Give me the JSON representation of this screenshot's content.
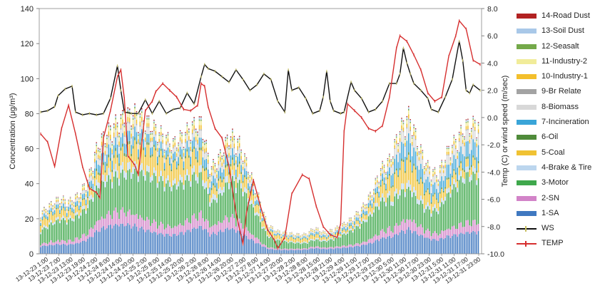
{
  "chart_data": {
    "type": "stacked-bar-with-lines",
    "left_axis": {
      "label": "Concentration (μg/m³)",
      "range": [
        0,
        140
      ],
      "ticks": [
        "0",
        "20",
        "40",
        "60",
        "80",
        "100",
        "120",
        "140"
      ]
    },
    "right_axis": {
      "label": "Temp (C) or wind speed (m/sec)",
      "range": [
        -10,
        8
      ],
      "ticks": [
        "-10.0",
        "-8.0",
        "-6.0",
        "-4.0",
        "-2.0",
        "0.0",
        "2.0",
        "4.0",
        "6.0",
        "8.0"
      ]
    },
    "x_ticks": [
      "13-12-23 1:00",
      "13-12-23 7:00",
      "13-12-23 13:00",
      "13-12-23 19:00",
      "13-12-24 2:00",
      "13-12-24 8:00",
      "13-12-24 14:00",
      "13-12-24 20:00",
      "13-12-25 2:00",
      "13-12-25 8:00",
      "13-12-25 14:00",
      "13-12-25 20:00",
      "13-12-26 2:00",
      "13-12-26 8:00",
      "13-12-26 14:00",
      "13-12-26 20:00",
      "13-12-27 2:00",
      "13-12-27 8:00",
      "13-12-27 14:00",
      "13-12-27 20:00",
      "13-12-28 2:00",
      "13-12-28 8:00",
      "13-12-28 15:00",
      "13-12-28 21:00",
      "13-12-29 4:00",
      "13-12-29 11:00",
      "13-12-29 17:00",
      "13-12-29 23:00",
      "13-12-30 5:00",
      "13-12-30 11:00",
      "13-12-30 17:00",
      "13-12-30 23:00",
      "13-12-31 5:00",
      "13-12-31 11:00",
      "13-12-31 17:00",
      "13-12-31 23:00"
    ],
    "total_profile": [
      [
        0,
        25
      ],
      [
        4,
        30
      ],
      [
        8,
        34
      ],
      [
        12,
        32
      ],
      [
        16,
        36
      ],
      [
        20,
        45
      ],
      [
        24,
        66
      ],
      [
        28,
        74
      ],
      [
        32,
        80
      ],
      [
        36,
        84
      ],
      [
        40,
        86
      ],
      [
        44,
        82
      ],
      [
        48,
        77
      ],
      [
        52,
        72
      ],
      [
        56,
        67
      ],
      [
        60,
        72
      ],
      [
        64,
        78
      ],
      [
        68,
        80
      ],
      [
        72,
        52
      ],
      [
        76,
        60
      ],
      [
        80,
        73
      ],
      [
        84,
        68
      ],
      [
        88,
        52
      ],
      [
        92,
        36
      ],
      [
        96,
        18
      ],
      [
        100,
        14
      ],
      [
        104,
        13
      ],
      [
        108,
        12
      ],
      [
        112,
        12
      ],
      [
        116,
        16
      ],
      [
        120,
        13
      ],
      [
        124,
        15
      ],
      [
        128,
        18
      ],
      [
        132,
        22
      ],
      [
        136,
        28
      ],
      [
        140,
        37
      ],
      [
        144,
        52
      ],
      [
        148,
        58
      ],
      [
        152,
        76
      ],
      [
        156,
        85
      ],
      [
        160,
        66
      ],
      [
        164,
        53
      ],
      [
        168,
        48
      ],
      [
        172,
        62
      ],
      [
        176,
        70
      ],
      [
        180,
        78
      ],
      [
        186,
        80
      ]
    ],
    "series": [
      {
        "name": "14-Road Dust",
        "color": "#b22222"
      },
      {
        "name": "13-Soil Dust",
        "color": "#a9c8e8"
      },
      {
        "name": "12-Seasalt",
        "color": "#74a94a"
      },
      {
        "name": "11-Industry-2",
        "color": "#f1ec9a"
      },
      {
        "name": "10-Industry-1",
        "color": "#f3bf2c"
      },
      {
        "name": "9-Br Relate",
        "color": "#a3a3a3"
      },
      {
        "name": "8-Biomass",
        "color": "#d8d8d8"
      },
      {
        "name": "7-Incineration",
        "color": "#3aa5d8"
      },
      {
        "name": "6-Oil",
        "color": "#4f8b3a"
      },
      {
        "name": "5-Coal",
        "color": "#f0c233"
      },
      {
        "name": "4-Brake & Tire",
        "color": "#bcd6ee"
      },
      {
        "name": "3-Motor",
        "color": "#3fa84c"
      },
      {
        "name": "2-SN",
        "color": "#d283c8"
      },
      {
        "name": "1-SA",
        "color": "#3f78c0"
      }
    ],
    "lines": [
      {
        "name": "WS",
        "color": "#111111",
        "marker_color": "#c8c060",
        "values": [
          [
            0,
            0.4
          ],
          [
            4,
            0.5
          ],
          [
            8,
            0.8
          ],
          [
            10,
            1.6
          ],
          [
            14,
            2.1
          ],
          [
            18,
            2.3
          ],
          [
            20,
            0.4
          ],
          [
            24,
            0.2
          ],
          [
            28,
            0.3
          ],
          [
            32,
            0.2
          ],
          [
            36,
            0.3
          ],
          [
            40,
            1.4
          ],
          [
            44,
            3.8
          ],
          [
            46,
            2.0
          ],
          [
            48,
            0.4
          ],
          [
            52,
            0.3
          ],
          [
            56,
            0.3
          ],
          [
            60,
            1.3
          ],
          [
            64,
            0.3
          ],
          [
            68,
            1.2
          ],
          [
            72,
            0.3
          ],
          [
            76,
            0.6
          ],
          [
            80,
            0.7
          ],
          [
            84,
            1.8
          ],
          [
            88,
            1.0
          ],
          [
            92,
            3.0
          ],
          [
            94,
            3.9
          ],
          [
            96,
            3.6
          ],
          [
            100,
            3.4
          ],
          [
            104,
            3.0
          ],
          [
            108,
            2.6
          ],
          [
            112,
            3.5
          ],
          [
            116,
            2.8
          ],
          [
            120,
            2.0
          ],
          [
            124,
            2.4
          ],
          [
            128,
            3.2
          ],
          [
            132,
            2.8
          ],
          [
            136,
            1.2
          ],
          [
            140,
            0.4
          ],
          [
            142,
            3.5
          ],
          [
            144,
            2.0
          ],
          [
            148,
            2.2
          ],
          [
            152,
            1.4
          ],
          [
            156,
            0.3
          ],
          [
            160,
            0.5
          ],
          [
            162,
            1.5
          ],
          [
            164,
            3.4
          ],
          [
            166,
            1.2
          ],
          [
            168,
            0.5
          ],
          [
            172,
            0.3
          ],
          [
            174,
            0.4
          ],
          [
            178,
            2.6
          ],
          [
            180,
            2.0
          ],
          [
            184,
            1.4
          ],
          [
            188,
            0.4
          ],
          [
            192,
            0.6
          ],
          [
            196,
            1.2
          ],
          [
            200,
            2.5
          ],
          [
            204,
            2.5
          ],
          [
            206,
            3.2
          ],
          [
            208,
            5.1
          ],
          [
            210,
            4.0
          ],
          [
            212,
            3.2
          ],
          [
            214,
            2.5
          ],
          [
            218,
            2.0
          ],
          [
            222,
            1.4
          ],
          [
            224,
            0.6
          ],
          [
            228,
            0.4
          ],
          [
            232,
            1.5
          ],
          [
            236,
            2.8
          ],
          [
            240,
            5.6
          ],
          [
            242,
            4.2
          ],
          [
            244,
            2.0
          ],
          [
            246,
            1.8
          ],
          [
            248,
            2.4
          ],
          [
            252,
            2.0
          ]
        ]
      },
      {
        "name": "TEMP",
        "color": "#d62f2f",
        "marker_color": "#d62f2f",
        "values": [
          [
            0,
            -1.2
          ],
          [
            4,
            -1.8
          ],
          [
            8,
            -3.6
          ],
          [
            12,
            -0.8
          ],
          [
            16,
            0.9
          ],
          [
            20,
            -1.2
          ],
          [
            24,
            -3.6
          ],
          [
            28,
            -5.2
          ],
          [
            32,
            -5.5
          ],
          [
            34,
            -5.9
          ],
          [
            36,
            -1.5
          ],
          [
            40,
            0.5
          ],
          [
            44,
            3.0
          ],
          [
            46,
            3.5
          ],
          [
            48,
            1.4
          ],
          [
            50,
            -2.8
          ],
          [
            54,
            -3.5
          ],
          [
            56,
            -4.2
          ],
          [
            60,
            0.5
          ],
          [
            64,
            1.2
          ],
          [
            66,
            1.9
          ],
          [
            70,
            2.5
          ],
          [
            74,
            2.0
          ],
          [
            78,
            1.5
          ],
          [
            82,
            0.6
          ],
          [
            86,
            0.5
          ],
          [
            90,
            0.9
          ],
          [
            92,
            2.5
          ],
          [
            94,
            2.3
          ],
          [
            96,
            0.8
          ],
          [
            100,
            -0.8
          ],
          [
            104,
            -1.5
          ],
          [
            108,
            -3.6
          ],
          [
            112,
            -7.0
          ],
          [
            116,
            -9.3
          ],
          [
            118,
            -7.0
          ],
          [
            122,
            -4.6
          ],
          [
            126,
            -6.5
          ],
          [
            130,
            -8.2
          ],
          [
            134,
            -9.0
          ],
          [
            136,
            -9.6
          ],
          [
            140,
            -8.8
          ],
          [
            144,
            -5.6
          ],
          [
            150,
            -4.2
          ],
          [
            154,
            -4.5
          ],
          [
            158,
            -6.5
          ],
          [
            162,
            -8.0
          ],
          [
            166,
            -8.6
          ],
          [
            170,
            -8.8
          ],
          [
            172,
            -7.8
          ],
          [
            174,
            -1.0
          ],
          [
            176,
            1.0
          ],
          [
            180,
            0.5
          ],
          [
            184,
            0.0
          ],
          [
            188,
            -0.8
          ],
          [
            192,
            -1.0
          ],
          [
            196,
            -0.6
          ],
          [
            200,
            1.5
          ],
          [
            204,
            5.1
          ],
          [
            206,
            6.0
          ],
          [
            210,
            5.6
          ],
          [
            214,
            4.6
          ],
          [
            218,
            3.5
          ],
          [
            222,
            1.8
          ],
          [
            226,
            1.2
          ],
          [
            230,
            1.5
          ],
          [
            234,
            4.5
          ],
          [
            238,
            6.0
          ],
          [
            240,
            7.1
          ],
          [
            244,
            6.5
          ],
          [
            248,
            4.2
          ],
          [
            252,
            3.9
          ]
        ]
      }
    ]
  }
}
